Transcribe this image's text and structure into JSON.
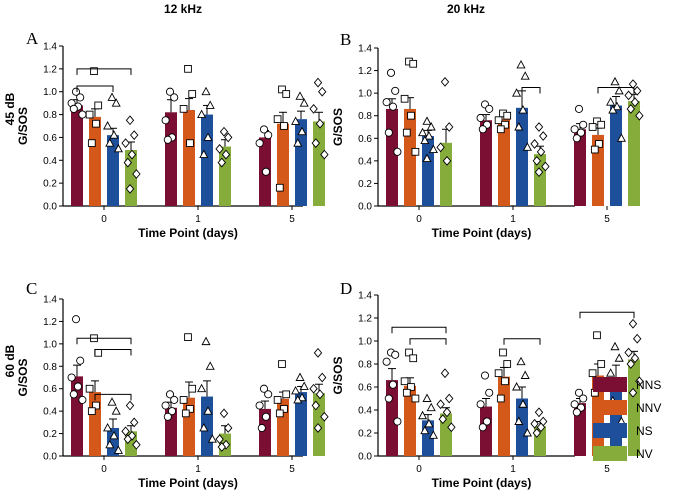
{
  "figure": {
    "col_titles": [
      "12 kHz",
      "20 kHz"
    ],
    "row_labels": [
      "45 dB",
      "60 dB"
    ]
  },
  "legend": [
    {
      "label": "NNS",
      "color": "#7a0e33"
    },
    {
      "label": "NNV",
      "color": "#d4581a"
    },
    {
      "label": "NS",
      "color": "#1e4f9a"
    },
    {
      "label": "NV",
      "color": "#86ad3b"
    }
  ],
  "chart_data": [
    {
      "type": "bar",
      "panel": "A",
      "xlabel": "Time Point (days)",
      "ylabel": "G/SOS",
      "categories": [
        "0",
        "1",
        "5"
      ],
      "ylim": [
        0,
        1.4
      ],
      "yticks": [
        "0.0",
        "0.2",
        "0.4",
        "0.6",
        "0.8",
        "1.0",
        "1.2",
        "1.4"
      ],
      "series": [
        {
          "name": "NNS",
          "values": [
            0.88,
            0.82,
            0.6
          ],
          "errors": [
            0.05,
            0.11,
            0.06
          ],
          "points": [
            [
              1.0,
              0.95,
              0.9,
              0.87,
              0.85,
              0.8
            ],
            [
              1.0,
              0.95,
              0.75,
              0.6,
              0.58
            ],
            [
              0.67,
              0.62,
              0.55,
              0.3
            ]
          ]
        },
        {
          "name": "NNV",
          "values": [
            0.78,
            0.84,
            0.72
          ],
          "errors": [
            0.07,
            0.1,
            0.1
          ],
          "points": [
            [
              1.18,
              0.88,
              0.8,
              0.72,
              0.55
            ],
            [
              1.2,
              0.98,
              0.85,
              0.55
            ],
            [
              1.02,
              0.98,
              0.76,
              0.7,
              0.16
            ]
          ]
        },
        {
          "name": "NS",
          "values": [
            0.62,
            0.8,
            0.76
          ],
          "errors": [
            0.06,
            0.08,
            0.07
          ],
          "points": [
            [
              0.95,
              0.9,
              0.7,
              0.62,
              0.55,
              0.5
            ],
            [
              1.0,
              0.88,
              0.8,
              0.6,
              0.45
            ],
            [
              0.96,
              0.9,
              0.74,
              0.65,
              0.55
            ]
          ]
        },
        {
          "name": "NV",
          "values": [
            0.49,
            0.52,
            0.74
          ],
          "errors": [
            0.07,
            0.06,
            0.08
          ],
          "points": [
            [
              0.75,
              0.62,
              0.55,
              0.45,
              0.38,
              0.28,
              0.15
            ],
            [
              0.65,
              0.6,
              0.5,
              0.45,
              0.38
            ],
            [
              1.08,
              1.0,
              0.85,
              0.72,
              0.55,
              0.45
            ]
          ]
        }
      ],
      "sig_brackets": [
        {
          "cat": 0,
          "from": "NNS",
          "to": "NV",
          "y": 1.2
        },
        {
          "cat": 0,
          "from": "NNS",
          "to": "NS",
          "y": 1.05
        }
      ]
    },
    {
      "type": "bar",
      "panel": "B",
      "xlabel": "Time Point (days)",
      "ylabel": "G/SOS",
      "categories": [
        "0",
        "1",
        "5"
      ],
      "ylim": [
        0,
        1.4
      ],
      "yticks": [
        "0.0",
        "0.2",
        "0.4",
        "0.6",
        "0.8",
        "1.0",
        "1.2",
        "1.4"
      ],
      "series": [
        {
          "name": "NNS",
          "values": [
            0.86,
            0.76,
            0.68
          ],
          "errors": [
            0.09,
            0.05,
            0.05
          ],
          "points": [
            [
              1.18,
              1.02,
              0.92,
              0.88,
              0.65,
              0.48
            ],
            [
              0.9,
              0.86,
              0.78,
              0.72,
              0.68
            ],
            [
              0.86,
              0.72,
              0.68,
              0.65,
              0.6
            ]
          ]
        },
        {
          "name": "NNV",
          "values": [
            0.86,
            0.77,
            0.63
          ],
          "errors": [
            0.1,
            0.04,
            0.06
          ],
          "points": [
            [
              1.28,
              1.26,
              0.95,
              0.8,
              0.65,
              0.48
            ],
            [
              0.82,
              0.8,
              0.76,
              0.72,
              0.68
            ],
            [
              0.75,
              0.72,
              0.7,
              0.55,
              0.5
            ]
          ]
        },
        {
          "name": "NS",
          "values": [
            0.62,
            0.87,
            0.89
          ],
          "errors": [
            0.05,
            0.15,
            0.08
          ],
          "points": [
            [
              0.75,
              0.7,
              0.65,
              0.62,
              0.58,
              0.5,
              0.42
            ],
            [
              1.25,
              1.15,
              1.0,
              0.85,
              0.7,
              0.52
            ],
            [
              1.1,
              1.02,
              0.92,
              0.88,
              0.85,
              0.6
            ]
          ]
        },
        {
          "name": "NV",
          "values": [
            0.56,
            0.46,
            0.93
          ],
          "errors": [
            0.12,
            0.07,
            0.06
          ],
          "points": [
            [
              1.1,
              0.7,
              0.52,
              0.4
            ],
            [
              0.7,
              0.62,
              0.55,
              0.48,
              0.4,
              0.35,
              0.3
            ],
            [
              1.08,
              1.02,
              0.98,
              0.92,
              0.86,
              0.8
            ]
          ]
        }
      ],
      "sig_brackets": [
        {
          "cat": 1,
          "from": "NS",
          "to": "NV",
          "y": 1.05
        },
        {
          "cat": 2,
          "from": "NNV",
          "to": "NV",
          "y": 1.05
        }
      ]
    },
    {
      "type": "bar",
      "panel": "C",
      "xlabel": "Time Point (days)",
      "ylabel": "G/SOS",
      "categories": [
        "0",
        "1",
        "5"
      ],
      "ylim": [
        0,
        1.4
      ],
      "yticks": [
        "0.0",
        "0.2",
        "0.4",
        "0.6",
        "0.8",
        "1.0",
        "1.2",
        "1.4"
      ],
      "series": [
        {
          "name": "NNS",
          "values": [
            0.71,
            0.43,
            0.42
          ],
          "errors": [
            0.1,
            0.05,
            0.07
          ],
          "points": [
            [
              1.22,
              0.85,
              0.7,
              0.62,
              0.55,
              0.5
            ],
            [
              0.55,
              0.5,
              0.45,
              0.4,
              0.35
            ],
            [
              0.6,
              0.55,
              0.45,
              0.35,
              0.25
            ]
          ]
        },
        {
          "name": "NNV",
          "values": [
            0.57,
            0.52,
            0.51
          ],
          "errors": [
            0.1,
            0.14,
            0.06
          ],
          "points": [
            [
              1.05,
              0.92,
              0.6,
              0.45,
              0.4
            ],
            [
              1.06,
              0.6,
              0.5,
              0.42,
              0.38
            ],
            [
              0.82,
              0.55,
              0.5,
              0.42,
              0.38
            ]
          ]
        },
        {
          "name": "NS",
          "values": [
            0.25,
            0.53,
            0.57
          ],
          "errors": [
            0.08,
            0.14,
            0.05
          ],
          "points": [
            [
              0.48,
              0.4,
              0.25,
              0.18,
              0.1,
              0.05
            ],
            [
              1.02,
              0.8,
              0.6,
              0.4,
              0.25,
              0.15
            ],
            [
              0.7,
              0.62,
              0.58,
              0.52,
              0.5
            ]
          ]
        },
        {
          "name": "NV",
          "values": [
            0.22,
            0.2,
            0.56
          ],
          "errors": [
            0.05,
            0.07,
            0.08
          ],
          "points": [
            [
              0.45,
              0.3,
              0.22,
              0.18,
              0.15,
              0.1
            ],
            [
              0.38,
              0.25,
              0.15,
              0.1,
              0.08
            ],
            [
              0.92,
              0.7,
              0.6,
              0.55,
              0.45,
              0.35,
              0.25
            ]
          ]
        }
      ],
      "sig_brackets": [
        {
          "cat": 0,
          "from": "NNS",
          "to": "NV",
          "y": 1.05
        },
        {
          "cat": 0,
          "from": "NNV",
          "to": "NV",
          "y": 0.95
        },
        {
          "cat": 0,
          "from": "NNV",
          "to": "NV",
          "y": 0.55
        }
      ]
    },
    {
      "type": "bar",
      "panel": "D",
      "xlabel": "Time Point (days)",
      "ylabel": "G/SOS",
      "categories": [
        "0",
        "1",
        "5"
      ],
      "ylim": [
        0,
        1.4
      ],
      "yticks": [
        "0.0",
        "0.2",
        "0.4",
        "0.6",
        "0.8",
        "1.0",
        "1.2",
        "1.4"
      ],
      "series": [
        {
          "name": "NNS",
          "values": [
            0.66,
            0.43,
            0.46
          ],
          "errors": [
            0.1,
            0.07,
            0.04
          ],
          "points": [
            [
              0.9,
              0.88,
              0.82,
              0.62,
              0.5,
              0.3
            ],
            [
              0.7,
              0.55,
              0.45,
              0.3,
              0.25
            ],
            [
              0.55,
              0.5,
              0.45,
              0.42,
              0.38
            ]
          ]
        },
        {
          "name": "NNV",
          "values": [
            0.61,
            0.69,
            0.7
          ],
          "errors": [
            0.07,
            0.08,
            0.1
          ],
          "points": [
            [
              0.9,
              0.85,
              0.65,
              0.6,
              0.55,
              0.5
            ],
            [
              0.9,
              0.8,
              0.72,
              0.65,
              0.5
            ],
            [
              1.05,
              0.8,
              0.72,
              0.65,
              0.55
            ]
          ]
        },
        {
          "name": "NS",
          "values": [
            0.31,
            0.5,
            0.67
          ],
          "errors": [
            0.05,
            0.1,
            0.12
          ],
          "points": [
            [
              0.5,
              0.42,
              0.35,
              0.28,
              0.22,
              0.18
            ],
            [
              0.82,
              0.7,
              0.6,
              0.45,
              0.3,
              0.2
            ],
            [
              0.95,
              0.85,
              0.72,
              0.6,
              0.48,
              0.3
            ]
          ]
        },
        {
          "name": "NV",
          "values": [
            0.37,
            0.26,
            0.84
          ],
          "errors": [
            0.05,
            0.04,
            0.07
          ],
          "points": [
            [
              0.72,
              0.5,
              0.45,
              0.38,
              0.32,
              0.25
            ],
            [
              0.38,
              0.3,
              0.28,
              0.25,
              0.2
            ],
            [
              1.15,
              1.02,
              0.9,
              0.85,
              0.8,
              0.65,
              0.55
            ]
          ]
        }
      ],
      "sig_brackets": [
        {
          "cat": 0,
          "from": "NNS",
          "to": "NV",
          "y": 1.12
        },
        {
          "cat": 0,
          "from": "NNV",
          "to": "NV",
          "y": 1.02
        },
        {
          "cat": 1,
          "from": "NNV",
          "to": "NV",
          "y": 1.02
        },
        {
          "cat": 2,
          "from": "NNS",
          "to": "NV",
          "y": 1.25
        }
      ]
    }
  ]
}
